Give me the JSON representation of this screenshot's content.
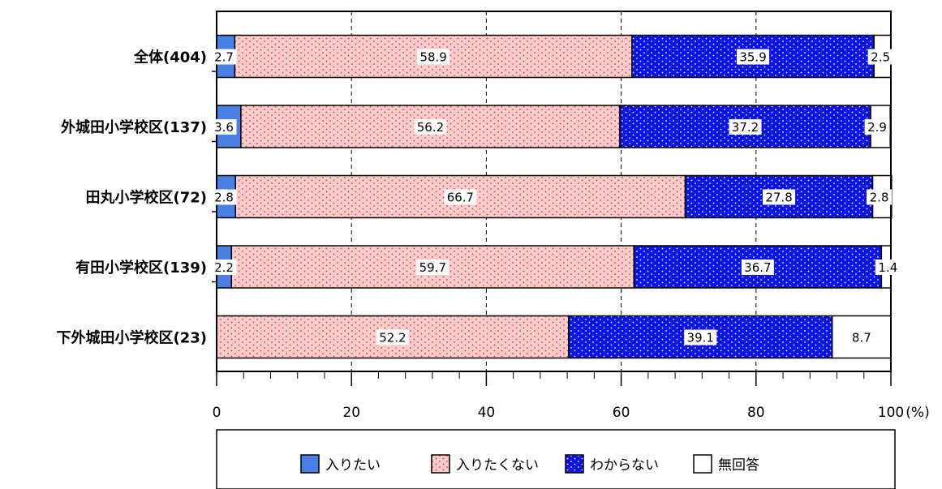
{
  "chart_data": {
    "type": "bar",
    "orientation": "horizontal",
    "stacked": true,
    "unit": "(%)",
    "xlim": [
      0,
      100
    ],
    "xticks": [
      0,
      20,
      40,
      60,
      80,
      100
    ],
    "grid": "vertical dashed",
    "legend_position": "bottom",
    "categories": [
      "全体(404)",
      "外城田小学校区(137)",
      "田丸小学校区(72)",
      "有田小学校区(139)",
      "下外城田小学校区(23)"
    ],
    "series": [
      {
        "name": "入りたい",
        "color": "#4a7fe6",
        "pattern": "solid",
        "values": [
          2.7,
          3.6,
          2.8,
          2.2,
          0
        ]
      },
      {
        "name": "入りたくない",
        "color": "#ffc8c8",
        "pattern": "red-dots",
        "values": [
          58.9,
          56.2,
          66.7,
          59.7,
          52.2
        ]
      },
      {
        "name": "わからない",
        "color": "#0a14e6",
        "pattern": "white-dots",
        "values": [
          35.9,
          37.2,
          27.8,
          36.7,
          39.1
        ]
      },
      {
        "name": "無回答",
        "color": "#ffffff",
        "pattern": "none",
        "values": [
          2.5,
          2.9,
          2.8,
          1.4,
          8.7
        ]
      }
    ],
    "data_labels": [
      [
        "2.7",
        "58.9",
        "35.9",
        "2.5"
      ],
      [
        "3.6",
        "56.2",
        "37.2",
        "2.9"
      ],
      [
        "2.8",
        "66.7",
        "27.8",
        "2.8"
      ],
      [
        "2.2",
        "59.7",
        "36.7",
        "1.4"
      ],
      [
        "",
        "52.2",
        "39.1",
        "8.7"
      ]
    ]
  }
}
